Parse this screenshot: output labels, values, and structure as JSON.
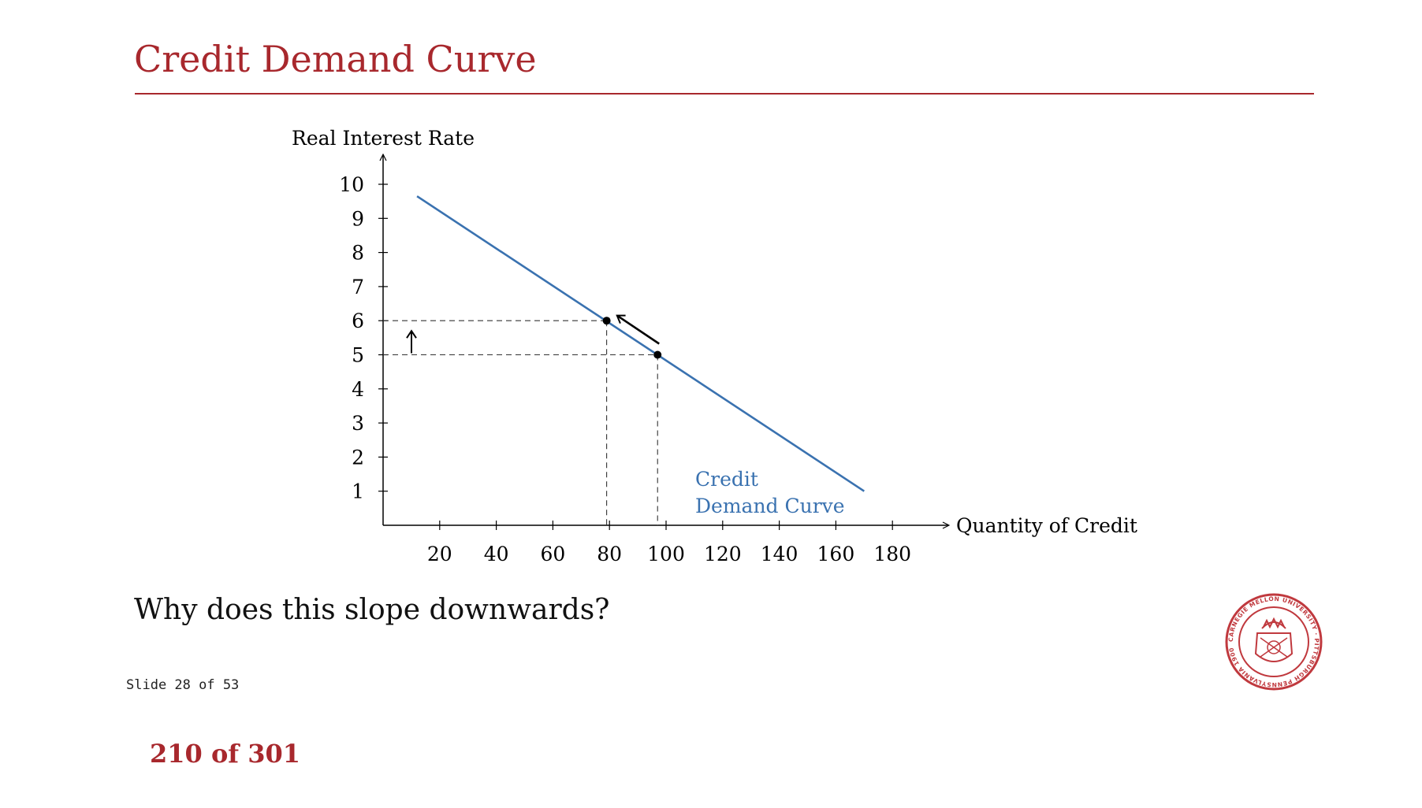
{
  "slide": {
    "title": "Credit Demand Curve",
    "question": "Why does this slope downwards?",
    "slide_counter": "Slide 28 of 53",
    "page_counter": "210 of 301",
    "accent_color": "#a8282d",
    "seal_icon": "carnegie-mellon-seal-icon",
    "seal_text": "CARNEGIE MELLON UNIVERSITY · PITTSBURGH PENNSYLVANIA 1900"
  },
  "chart_data": {
    "type": "line",
    "xlabel": "Quantity of Credit",
    "ylabel": "Real Interest Rate",
    "xlim": [
      0,
      190
    ],
    "ylim": [
      0,
      10.5
    ],
    "xticks": [
      20,
      40,
      60,
      80,
      100,
      120,
      140,
      160,
      180
    ],
    "yticks": [
      1,
      2,
      3,
      4,
      5,
      6,
      7,
      8,
      9,
      10
    ],
    "grid": false,
    "series": [
      {
        "name": "Credit Demand Curve",
        "label_lines": [
          "Credit",
          "Demand Curve"
        ],
        "color": "#3a72b0",
        "x": [
          12,
          170
        ],
        "y": [
          9.65,
          1.0
        ]
      }
    ],
    "points": [
      {
        "x": 79,
        "y": 6
      },
      {
        "x": 97,
        "y": 5
      }
    ],
    "annotations": [
      {
        "type": "arrow",
        "from": {
          "x": 97,
          "y": 5
        },
        "to": {
          "x": 79,
          "y": 6
        },
        "meaning": "movement along curve"
      },
      {
        "type": "arrow",
        "axis": "y",
        "from": 5,
        "to": 6,
        "meaning": "rate rises"
      }
    ]
  }
}
